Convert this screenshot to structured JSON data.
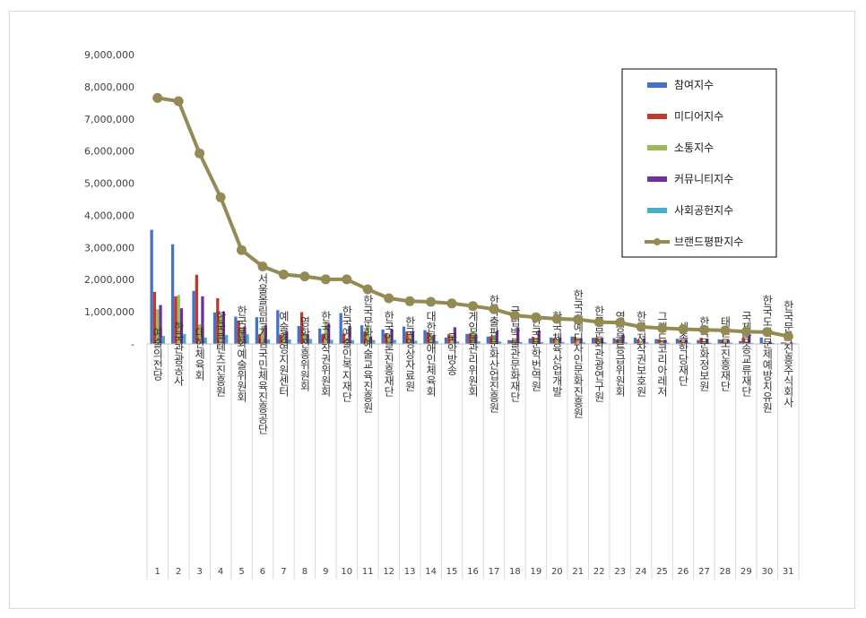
{
  "chart_data": {
    "type": "bar",
    "title": "",
    "xlabel": "",
    "ylabel": "",
    "ylim": [
      0,
      9000000
    ],
    "yticks": [
      "-",
      "1,000,000",
      "2,000,000",
      "3,000,000",
      "4,000,000",
      "5,000,000",
      "6,000,000",
      "7,000,000",
      "8,000,000",
      "9,000,000"
    ],
    "grid": false,
    "legend_position": "top-right",
    "ranks": [
      "1",
      "2",
      "3",
      "4",
      "5",
      "6",
      "7",
      "8",
      "9",
      "10",
      "11",
      "12",
      "13",
      "14",
      "15",
      "16",
      "17",
      "18",
      "19",
      "20",
      "21",
      "22",
      "23",
      "24",
      "25",
      "26",
      "27",
      "28",
      "29",
      "30",
      "31"
    ],
    "categories": [
      "예술의전당",
      "한국관광공사",
      "대한체육회",
      "한국콘텐츠진흥원",
      "한국문화예술위원회",
      "서울올림픽기념국민체육진흥공단",
      "예술경영지원센터",
      "영화진흥위원회",
      "한국저작권위원회",
      "한국예술인복지재단",
      "한국문화예술교육진흥원",
      "한국언론진흥재단",
      "한국영상자료원",
      "대한장애인체육회",
      "국악방송",
      "게임물관리위원회",
      "한국출판문화산업진흥원",
      "국립박물관문화재단",
      "한국문학번역원",
      "한국체육산업개발",
      "한국공예디자인문화진흥원",
      "한국문화관광연구원",
      "영상물등급위원회",
      "한국저작권보호원",
      "그랜드코리아레저",
      "세종학당재단",
      "한국문화정보원",
      "태권도진흥재단",
      "국제방송교류재단",
      "한국도박문제예방치유원",
      "한국문화진흥주식회사"
    ],
    "series": [
      {
        "name": "참여지수",
        "type": "bar",
        "color": "#4472c4",
        "values": [
          3550000,
          3100000,
          1650000,
          980000,
          850000,
          830000,
          1050000,
          560000,
          480000,
          960000,
          580000,
          450000,
          540000,
          430000,
          200000,
          310000,
          230000,
          120000,
          170000,
          200000,
          230000,
          190000,
          180000,
          190000,
          150000,
          160000,
          120000,
          140000,
          90000,
          200000,
          50000
        ]
      },
      {
        "name": "미디어지수",
        "type": "bar",
        "color": "#c0392b",
        "values": [
          1620000,
          1480000,
          2150000,
          1420000,
          720000,
          300000,
          290000,
          990000,
          290000,
          320000,
          380000,
          330000,
          360000,
          370000,
          300000,
          320000,
          240000,
          110000,
          220000,
          180000,
          220000,
          200000,
          140000,
          130000,
          150000,
          130000,
          190000,
          130000,
          190000,
          40000,
          40000
        ]
      },
      {
        "name": "소통지수",
        "type": "bar",
        "color": "#9bbb59",
        "values": [
          1080000,
          1520000,
          610000,
          880000,
          520000,
          560000,
          360000,
          340000,
          680000,
          170000,
          580000,
          280000,
          300000,
          310000,
          280000,
          390000,
          280000,
          140000,
          200000,
          170000,
          200000,
          180000,
          140000,
          100000,
          120000,
          100000,
          100000,
          100000,
          80000,
          30000,
          30000
        ]
      },
      {
        "name": "커뮤니티지수",
        "type": "bar",
        "color": "#7030a0",
        "values": [
          1210000,
          1110000,
          1480000,
          1010000,
          540000,
          580000,
          400000,
          300000,
          620000,
          560000,
          230000,
          460000,
          390000,
          270000,
          520000,
          300000,
          390000,
          520000,
          420000,
          200000,
          180000,
          190000,
          290000,
          170000,
          130000,
          150000,
          160000,
          130000,
          310000,
          60000,
          50000
        ]
      },
      {
        "name": "사회공헌지수",
        "type": "bar",
        "color": "#4bacc6",
        "values": [
          250000,
          310000,
          200000,
          280000,
          300000,
          140000,
          140000,
          160000,
          130000,
          120000,
          120000,
          130000,
          100000,
          90000,
          80000,
          80000,
          80000,
          60000,
          60000,
          60000,
          50000,
          50000,
          50000,
          50000,
          40000,
          40000,
          40000,
          40000,
          30000,
          30000,
          20000
        ]
      },
      {
        "name": "브랜드평판지수",
        "type": "line",
        "color": "#948a54",
        "values": [
          7650000,
          7550000,
          5930000,
          4560000,
          2920000,
          2410000,
          2160000,
          2100000,
          2010000,
          2010000,
          1700000,
          1420000,
          1330000,
          1310000,
          1260000,
          1180000,
          1080000,
          890000,
          830000,
          780000,
          760000,
          680000,
          660000,
          530000,
          490000,
          460000,
          440000,
          420000,
          380000,
          370000,
          240000
        ]
      }
    ]
  }
}
